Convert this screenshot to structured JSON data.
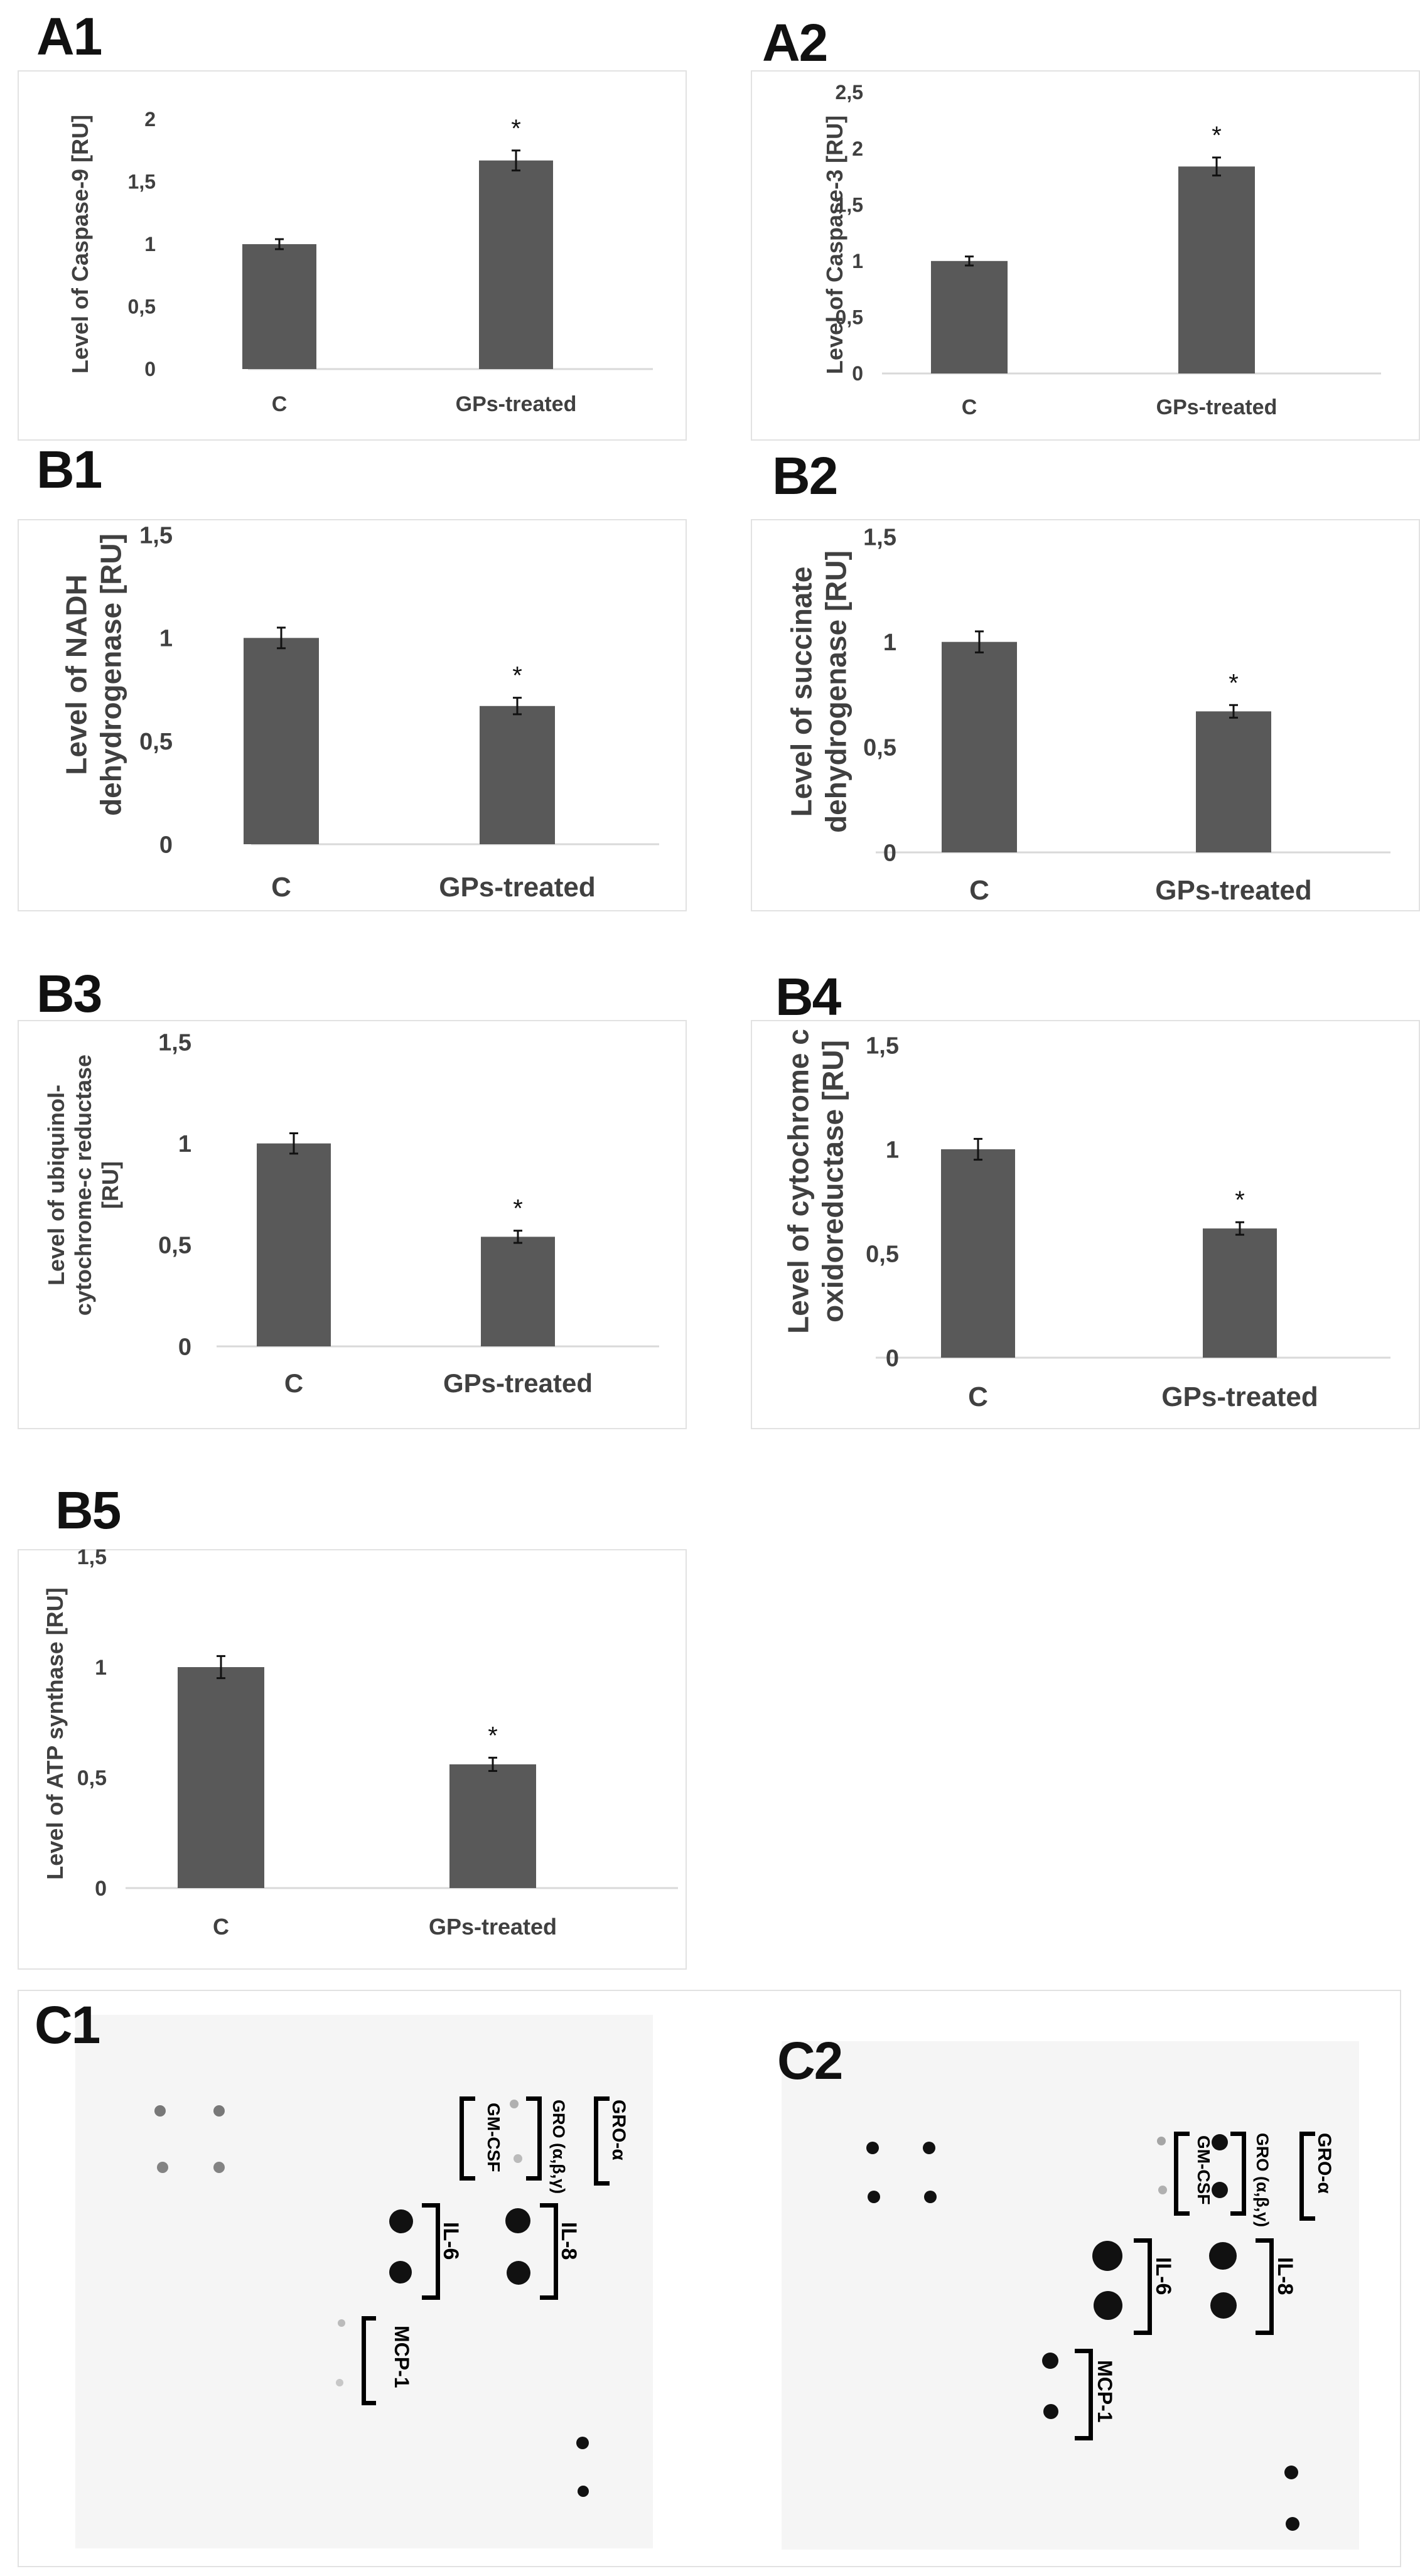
{
  "panel_labels": {
    "A1": "A1",
    "A2": "A2",
    "B1": "B1",
    "B2": "B2",
    "B3": "B3",
    "B4": "B4",
    "B5": "B5",
    "C1": "C1",
    "C2": "C2"
  },
  "chart_data": [
    {
      "id": "A1",
      "type": "bar",
      "categories": [
        "C",
        "GPs-treated"
      ],
      "values": [
        1.0,
        1.67
      ],
      "errors": [
        0.04,
        0.08
      ],
      "significance": [
        "",
        "*"
      ],
      "ylabel": "Level of Caspase-9 [RU]",
      "ylim": [
        0,
        2
      ],
      "yticks": [
        "0",
        "0,5",
        "1",
        "1,5",
        "2"
      ],
      "title": "",
      "xlabel": ""
    },
    {
      "id": "A2",
      "type": "bar",
      "categories": [
        "C",
        "GPs-treated"
      ],
      "values": [
        1.0,
        1.84
      ],
      "errors": [
        0.04,
        0.08
      ],
      "significance": [
        "",
        "*"
      ],
      "ylabel": "Level of Caspase-3 [RU]",
      "ylim": [
        0,
        2.5
      ],
      "yticks": [
        "0",
        "0,5",
        "1",
        "1,5",
        "2",
        "2,5"
      ],
      "title": "",
      "xlabel": ""
    },
    {
      "id": "B1",
      "type": "bar",
      "categories": [
        "C",
        "GPs-treated"
      ],
      "values": [
        1.0,
        0.67
      ],
      "errors": [
        0.05,
        0.04
      ],
      "significance": [
        "",
        "*"
      ],
      "ylabel": [
        "Level of NADH",
        "dehydrogenase [RU]"
      ],
      "ylim": [
        0,
        1.5
      ],
      "yticks": [
        "0",
        "0,5",
        "1",
        "1,5"
      ],
      "title": "",
      "xlabel": ""
    },
    {
      "id": "B2",
      "type": "bar",
      "categories": [
        "C",
        "GPs-treated"
      ],
      "values": [
        1.0,
        0.67
      ],
      "errors": [
        0.05,
        0.03
      ],
      "significance": [
        "",
        "*"
      ],
      "ylabel": [
        "Level of succinate",
        "dehydrogenase [RU]"
      ],
      "ylim": [
        0,
        1.5
      ],
      "yticks": [
        "0",
        "0,5",
        "1",
        "1,5"
      ],
      "title": "",
      "xlabel": ""
    },
    {
      "id": "B3",
      "type": "bar",
      "categories": [
        "C",
        "GPs-treated"
      ],
      "values": [
        1.0,
        0.54
      ],
      "errors": [
        0.05,
        0.03
      ],
      "significance": [
        "",
        "*"
      ],
      "ylabel": [
        "Level of ubiquinol-",
        "cytochrome-c reductase",
        "[RU]"
      ],
      "ylim": [
        0,
        1.5
      ],
      "yticks": [
        "0",
        "0,5",
        "1",
        "1,5"
      ],
      "title": "",
      "xlabel": ""
    },
    {
      "id": "B4",
      "type": "bar",
      "categories": [
        "C",
        "GPs-treated"
      ],
      "values": [
        1.0,
        0.62
      ],
      "errors": [
        0.05,
        0.03
      ],
      "significance": [
        "",
        "*"
      ],
      "ylabel": [
        "Level of cytochrome c",
        "oxidoreductase [RU]"
      ],
      "ylim": [
        0,
        1.5
      ],
      "yticks": [
        "0",
        "0,5",
        "1",
        "1,5"
      ],
      "title": "",
      "xlabel": ""
    },
    {
      "id": "B5",
      "type": "bar",
      "categories": [
        "C",
        "GPs-treated"
      ],
      "values": [
        1.0,
        0.56
      ],
      "errors": [
        0.05,
        0.03
      ],
      "significance": [
        "",
        "*"
      ],
      "ylabel": "Level of ATP synthase [RU]",
      "ylim": [
        0,
        1.5
      ],
      "yticks": [
        "0",
        "0,5",
        "1",
        "1,5"
      ],
      "title": "",
      "xlabel": ""
    }
  ],
  "colors": {
    "bar": "#595959",
    "axis": "#d9d9d9",
    "text": "#404040",
    "label": "#111111",
    "dot": "#111111"
  },
  "blots": {
    "C1": {
      "labels": {
        "gm_csf": "GM-CSF",
        "gro_abg": "GRO (α,β,γ)",
        "gro_a": "GRO-α",
        "il6": "IL-6",
        "il8": "IL-8",
        "mcp1": "MCP-1"
      }
    },
    "C2": {
      "labels": {
        "gm_csf": "GM-CSF",
        "gro_abg": "GRO (α,β,γ)",
        "gro_a": "GRO-α",
        "il6": "IL-6",
        "il8": "IL-8",
        "mcp1": "MCP-1"
      }
    }
  }
}
